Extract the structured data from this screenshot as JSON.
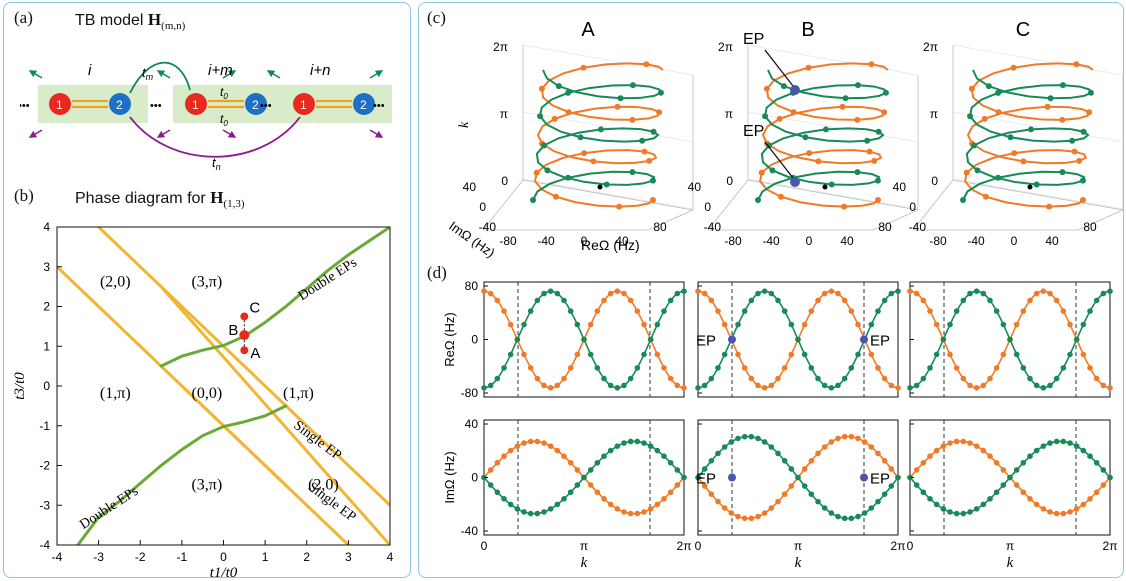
{
  "left": {
    "a": {
      "label": "(a)",
      "title_prefix": "TB model ",
      "title_bold": "H",
      "title_sub": "(m,n)",
      "site_labels": [
        "i",
        "i+m",
        "i+n"
      ],
      "hop_labels": [
        "t",
        "m",
        "t",
        "0",
        "t",
        "0",
        "t",
        "n"
      ],
      "node_labels": [
        "1",
        "2"
      ],
      "dots": "•••"
    },
    "b": {
      "label": "(b)",
      "title_prefix": "Phase diagram for ",
      "title_bold": "H",
      "title_sub": "(1,3)"
    }
  },
  "right": {
    "c_label": "(c)",
    "d_label": "(d)",
    "col_titles": [
      "A",
      "B",
      "C"
    ],
    "ep_label": "EP",
    "k_label": "k",
    "ticks_k3d": [
      "0",
      "π",
      "2π"
    ],
    "re_axis_3d": "ReΩ (Hz)",
    "im_axis_3d": "ImΩ (Hz)",
    "re_ticks_3d": [
      "-80",
      "-40",
      "0",
      "40",
      "80"
    ],
    "im_ticks_3d": [
      "40",
      "0",
      "-40"
    ],
    "re_ylabel": "ReΩ (Hz)",
    "im_ylabel": "ImΩ (Hz)",
    "re_yticks": [
      "80",
      "0",
      "-80"
    ],
    "im_yticks": [
      "40",
      "0",
      "-40"
    ],
    "kticks": [
      "0",
      "π",
      "2π"
    ]
  },
  "chart_data": {
    "type": "line",
    "title": "Phase diagram for H(1,3)",
    "xlabel": "t1/t0",
    "ylabel": "t3/t0",
    "xlim": [
      -4,
      4
    ],
    "ylim": [
      -4,
      4
    ],
    "xticks": [
      "-4",
      "-3",
      "-2",
      "-1",
      "0",
      "1",
      "2",
      "3",
      "4"
    ],
    "yticks": [
      "4",
      "3",
      "2",
      "1",
      "0",
      "-1",
      "-2",
      "-3",
      "-4"
    ],
    "series": [
      {
        "kind": "yellow-line",
        "x": [
          -4,
          1.5
        ],
        "y": [
          3,
          -2.5
        ]
      },
      {
        "kind": "yellow-line",
        "x": [
          -3,
          4
        ],
        "y": [
          4,
          -3
        ]
      },
      {
        "kind": "yellow-line",
        "x": [
          -1.5,
          4
        ],
        "y": [
          2.5,
          -4
        ]
      },
      {
        "kind": "yellow-line",
        "x": [
          -1,
          3
        ],
        "y": [
          0,
          -4
        ]
      },
      {
        "kind": "green-curve",
        "x": [
          -1.5,
          -1,
          -0.5,
          0,
          0.5,
          1,
          1.5,
          2,
          2.5,
          3,
          3.5,
          4
        ],
        "y": [
          0.5,
          0.75,
          0.9,
          1.02,
          1.25,
          1.6,
          2.0,
          2.45,
          2.9,
          3.3,
          3.65,
          4.0
        ]
      },
      {
        "kind": "green-curve",
        "x": [
          1.5,
          1,
          0.5,
          0,
          -0.5,
          -1,
          -1.5,
          -2,
          -2.5,
          -3,
          -3.5
        ],
        "y": [
          -0.5,
          -0.75,
          -0.9,
          -1.02,
          -1.25,
          -1.6,
          -2.0,
          -2.45,
          -2.9,
          -3.3,
          -4.0
        ]
      }
    ],
    "points": [
      {
        "label": "A",
        "x": 0.5,
        "y": 0.9
      },
      {
        "label": "B",
        "x": 0.5,
        "y": 1.28
      },
      {
        "label": "C",
        "x": 0.5,
        "y": 1.75
      }
    ],
    "regions": [
      "(2,0)",
      "(3,π)",
      "(1,π)",
      "(0,0)",
      "(1,π)",
      "(3,π)",
      "(2,0)"
    ],
    "annotations": [
      "Double EPs",
      "Double EPs",
      "Single EP",
      "Single EP"
    ]
  }
}
